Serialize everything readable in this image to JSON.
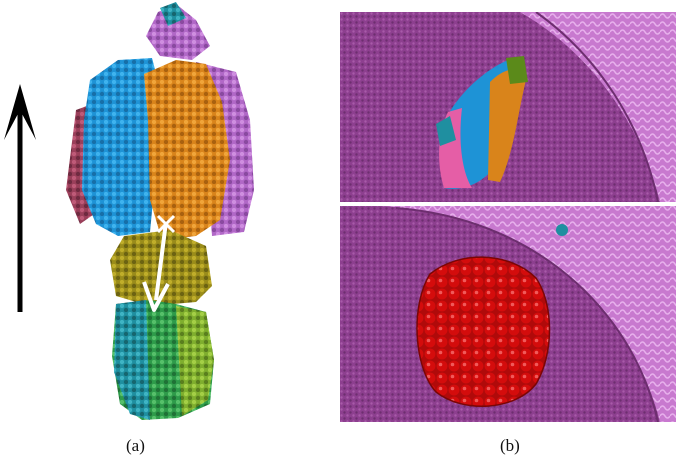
{
  "figure": {
    "caption_a": "(a)",
    "caption_b": "(b)"
  },
  "colors": {
    "membrane_inner": "#8d3f8f",
    "membrane_outer": "#c879cf",
    "nanoparticle": "#d40c0c",
    "protein_blue": "#1e93d6",
    "protein_orange": "#d9841b",
    "protein_violet": "#b168c7",
    "protein_magenta": "#9a3f5a",
    "protein_olive": "#9a8c1a",
    "protein_green": "#2e9b4a",
    "protein_teal": "#1f8fa0"
  }
}
